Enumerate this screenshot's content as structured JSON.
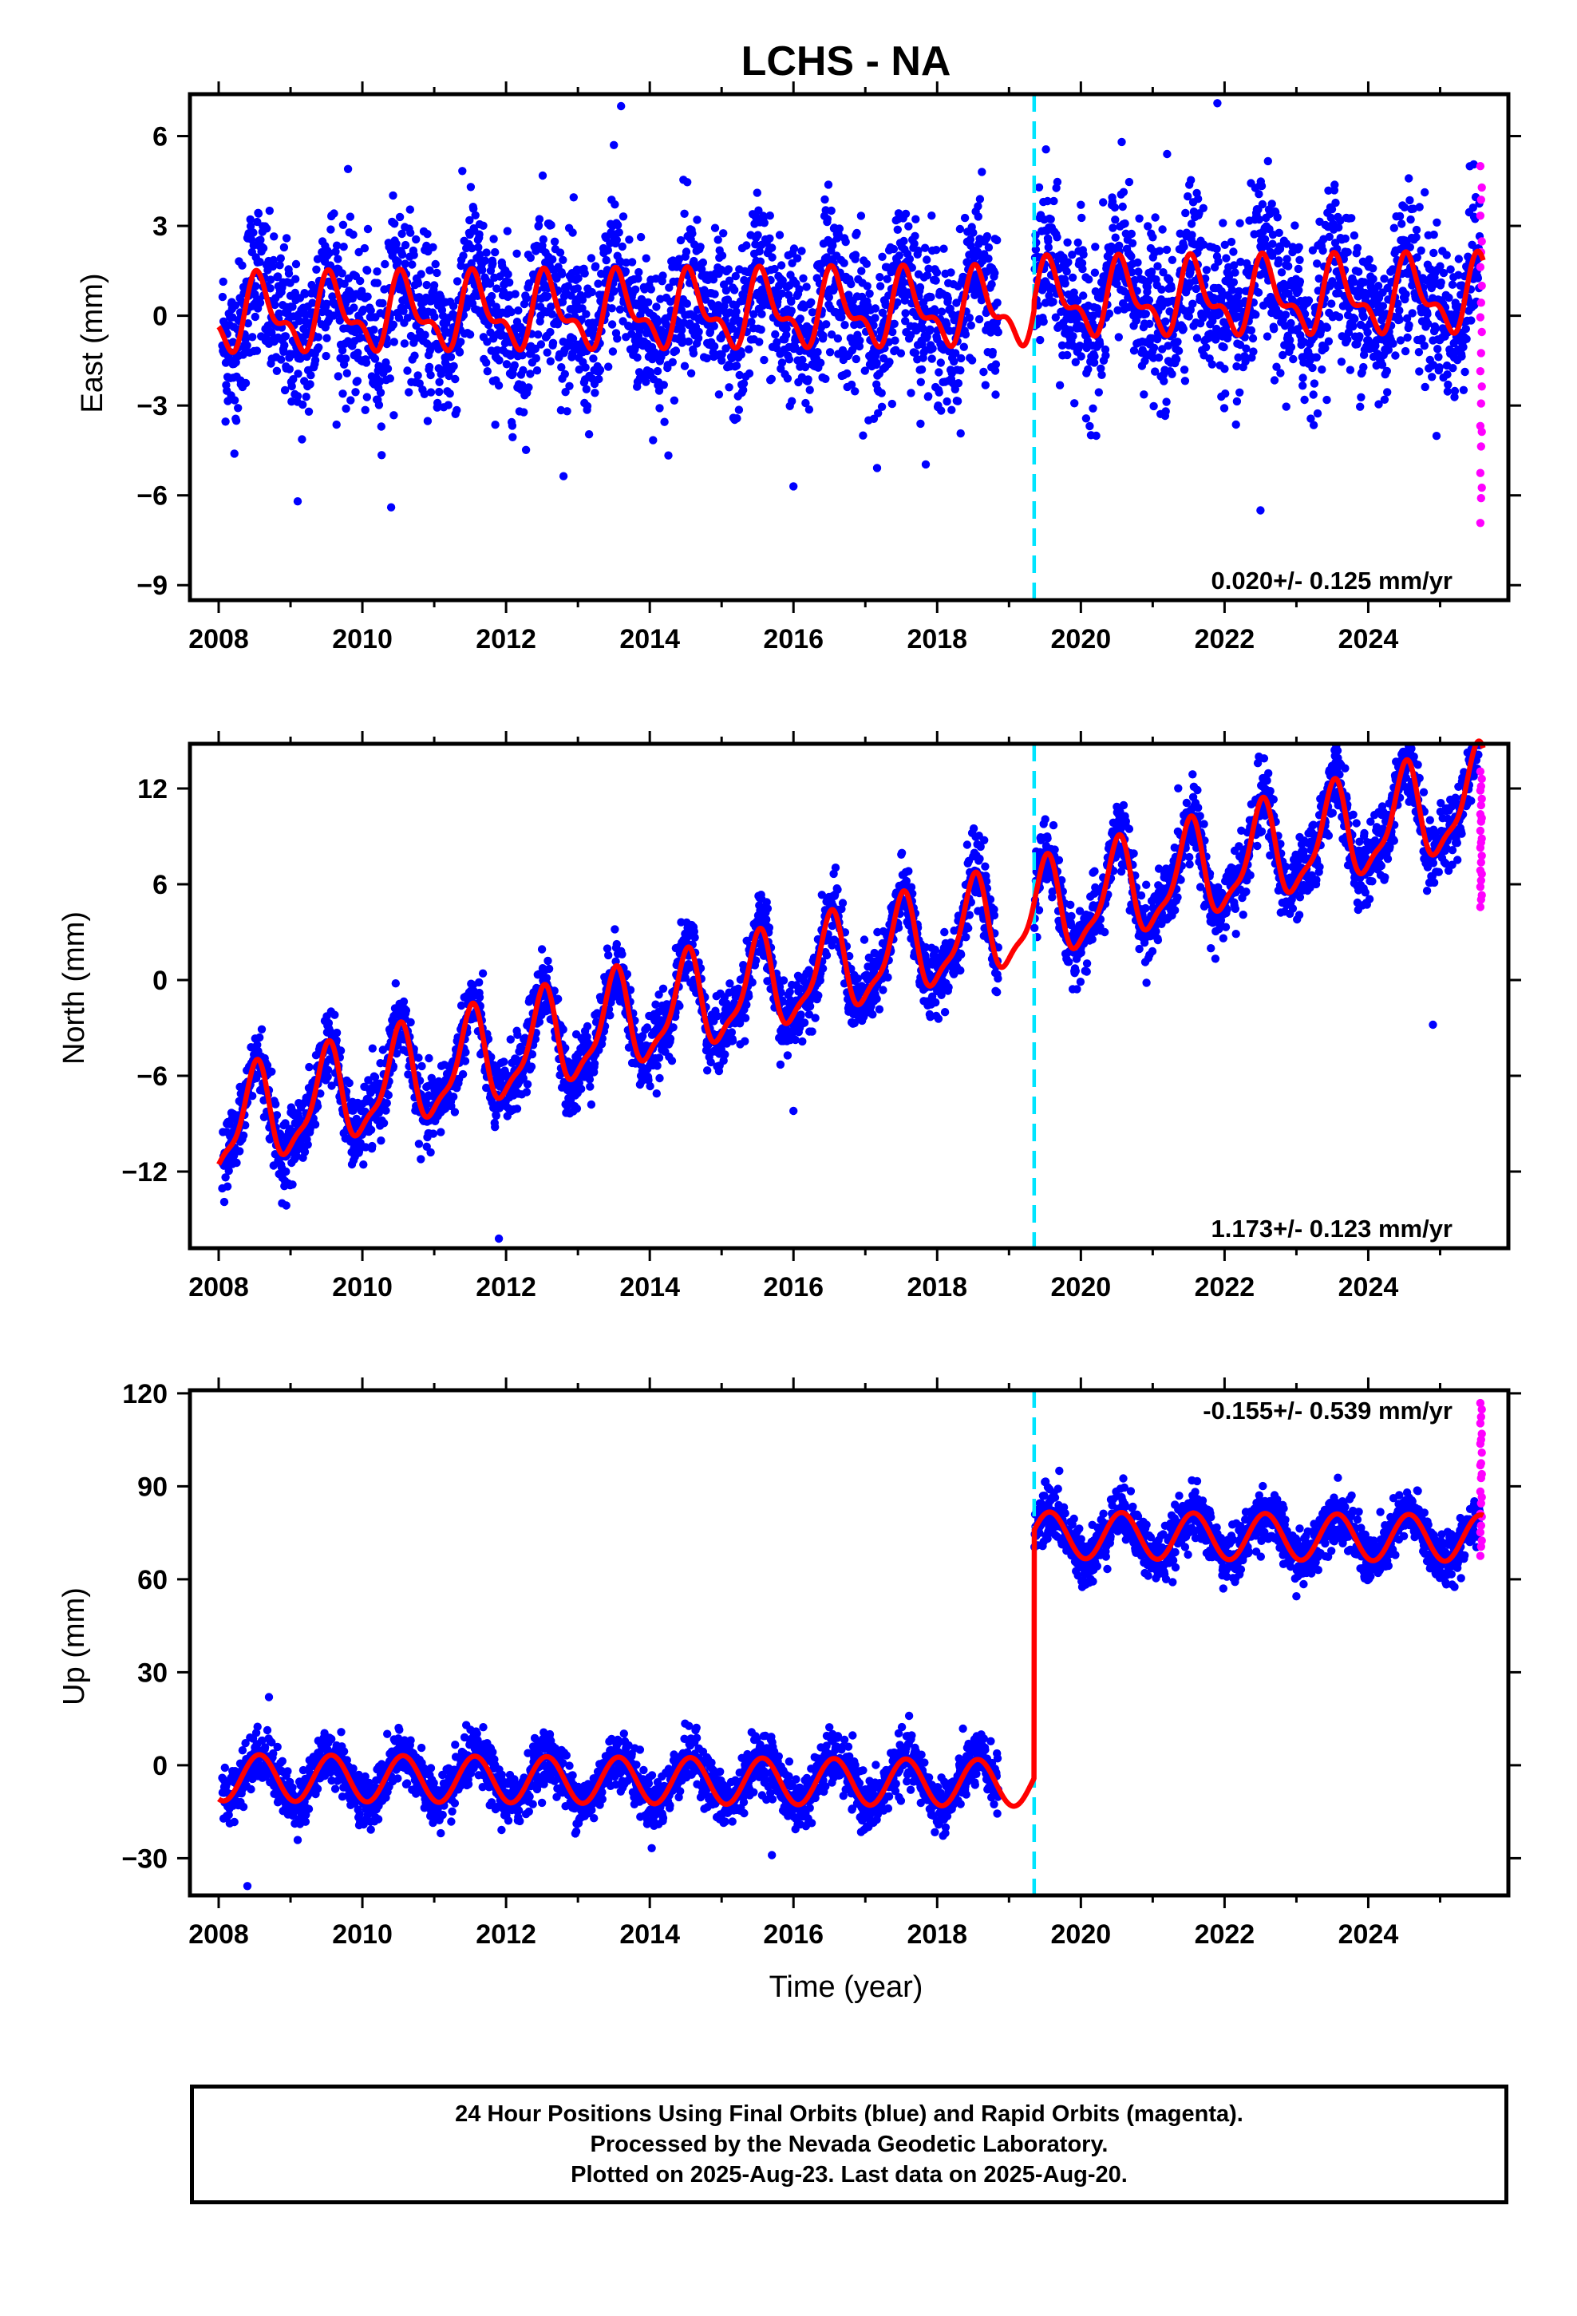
{
  "title": "LCHS - NA",
  "xlabel": "Time (year)",
  "colors": {
    "final": "#0000ff",
    "rapid": "#ff00ff",
    "model": "#ff0000",
    "event": "#00e5ff"
  },
  "chart_data": [
    {
      "type": "scatter",
      "component": "East",
      "ylabel": "East (mm)",
      "xlim": [
        2007.6,
        2025.95
      ],
      "ylim": [
        -9.5,
        7.4
      ],
      "yticks": [
        6,
        3,
        0,
        -3,
        -6,
        -9
      ],
      "ytick_labels": [
        "6",
        "3",
        "0",
        "−3",
        "−6",
        "−9"
      ],
      "xticks": [
        2008,
        2010,
        2012,
        2014,
        2016,
        2018,
        2020,
        2022,
        2024
      ],
      "xtick_labels": [
        "2008",
        "2010",
        "2012",
        "2014",
        "2016",
        "2018",
        "2020",
        "2022",
        "2024"
      ],
      "rate_text": "0.020+/- 0.125 mm/yr",
      "event_x": 2019.35,
      "model": {
        "offset_before": 0.0,
        "offset_after": 0.3,
        "slope": 0.02,
        "annual_amp": 1.05,
        "annual_phase": 4.2,
        "semiannual_amp": 0.55,
        "semiannual_phase": 1.6
      },
      "scatter_sd": 1.3,
      "series": [
        {
          "name": "Final Orbits",
          "color": "blue"
        },
        {
          "name": "Rapid Orbits",
          "color": "magenta"
        }
      ],
      "gap": [
        2018.85,
        2019.35
      ],
      "rapid_range": [
        5.0,
        -6.9
      ],
      "outliers": [
        [
          2013.6,
          7.0
        ],
        [
          2013.5,
          5.7
        ],
        [
          2009.8,
          4.9
        ],
        [
          2010.4,
          -6.4
        ],
        [
          2009.1,
          -6.2
        ],
        [
          2021.9,
          7.1
        ],
        [
          2022.5,
          -6.5
        ],
        [
          2021.2,
          5.4
        ],
        [
          2016.0,
          -5.7
        ]
      ]
    },
    {
      "type": "scatter",
      "component": "North",
      "ylabel": "North (mm)",
      "xlim": [
        2007.6,
        2025.95
      ],
      "ylim": [
        -16.8,
        14.8
      ],
      "yticks": [
        12,
        6,
        0,
        -6,
        -12
      ],
      "ytick_labels": [
        "12",
        "6",
        "0",
        "−6",
        "−12"
      ],
      "xticks": [
        2008,
        2010,
        2012,
        2014,
        2016,
        2018,
        2020,
        2022,
        2024
      ],
      "xtick_labels": [
        "2008",
        "2010",
        "2012",
        "2014",
        "2016",
        "2018",
        "2020",
        "2022",
        "2024"
      ],
      "rate_text": "1.173+/- 0.123 mm/yr",
      "event_x": 2019.35,
      "model": {
        "offset_before": -9.3,
        "offset_after": -9.3,
        "slope": 1.173,
        "annual_amp": 2.9,
        "annual_phase": -1.6,
        "semiannual_amp": 0.9,
        "semiannual_phase": 0.8
      },
      "scatter_sd": 1.1,
      "series": [
        {
          "name": "Final Orbits",
          "color": "blue"
        },
        {
          "name": "Rapid Orbits",
          "color": "magenta"
        }
      ],
      "gap": [
        2018.85,
        2019.35
      ],
      "rapid_range": [
        13.0,
        4.6
      ],
      "outliers": [
        [
          2011.9,
          -16.2
        ],
        [
          2016.0,
          -8.2
        ],
        [
          2024.9,
          -2.8
        ],
        [
          2024.6,
          14.5
        ],
        [
          2025.4,
          13.8
        ]
      ]
    },
    {
      "type": "scatter",
      "component": "Up",
      "ylabel": "Up (mm)",
      "xlim": [
        2007.6,
        2025.95
      ],
      "ylim": [
        -42,
        121
      ],
      "yticks": [
        120,
        90,
        60,
        30,
        0,
        -30
      ],
      "ytick_labels": [
        "120",
        "90",
        "60",
        "30",
        "0",
        "−30"
      ],
      "xticks": [
        2008,
        2010,
        2012,
        2014,
        2016,
        2018,
        2020,
        2022,
        2024
      ],
      "xtick_labels": [
        "2008",
        "2010",
        "2012",
        "2014",
        "2016",
        "2018",
        "2020",
        "2022",
        "2024"
      ],
      "rate_text": "-0.155+/- 0.539 mm/yr",
      "event_x": 2019.35,
      "model": {
        "offset_before": -4.0,
        "offset_after": 76.0,
        "slope": -0.155,
        "annual_amp": 7.5,
        "annual_phase": 4.3,
        "semiannual_amp": 0.0,
        "semiannual_phase": 0.0
      },
      "scatter_sd": 4.3,
      "series": [
        {
          "name": "Final Orbits",
          "color": "blue"
        },
        {
          "name": "Rapid Orbits",
          "color": "magenta"
        }
      ],
      "gap": [
        2018.85,
        2019.35
      ],
      "rapid_range": [
        117.0,
        68.0
      ],
      "outliers": [
        [
          2008.4,
          -39.0
        ],
        [
          2008.7,
          22.0
        ],
        [
          2019.7,
          95.0
        ],
        [
          2015.7,
          -29.0
        ]
      ]
    }
  ],
  "footer": {
    "line1": "24 Hour Positions Using Final Orbits (blue) and Rapid Orbits (magenta).",
    "line2": "Processed by the Nevada Geodetic Laboratory.",
    "line3": "Plotted on 2025-Aug-23. Last data on 2025-Aug-20."
  }
}
